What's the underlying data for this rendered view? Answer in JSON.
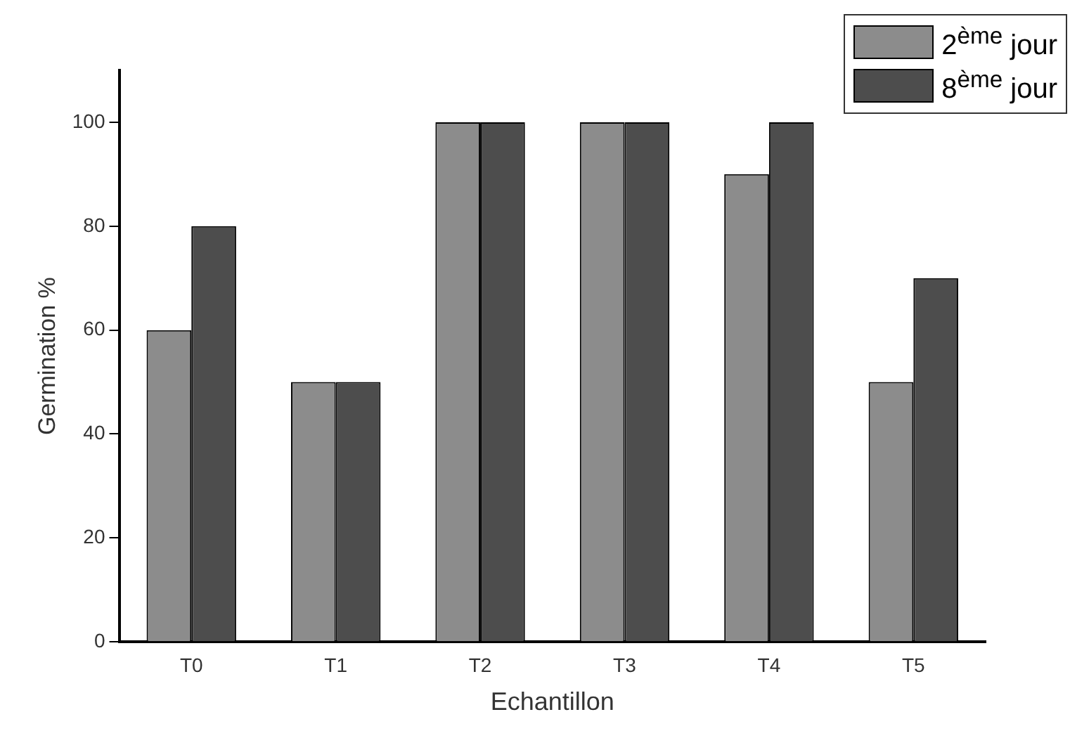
{
  "chart_data": {
    "type": "bar",
    "xlabel": "Echantillon",
    "ylabel": "Germination %",
    "categories": [
      "T0",
      "T1",
      "T2",
      "T3",
      "T4",
      "T5"
    ],
    "series": [
      {
        "name": "2$^{ème}$ jour",
        "color": "#8c8c8c",
        "values": [
          60,
          50,
          100,
          100,
          90,
          50
        ]
      },
      {
        "name": "8$^{ème}$ jour",
        "color": "#4d4d4d",
        "values": [
          80,
          50,
          100,
          100,
          100,
          70
        ]
      }
    ],
    "ylim": [
      0,
      110
    ],
    "yticks": [
      0,
      20,
      40,
      60,
      80,
      100
    ],
    "grid": false,
    "legend": "top right"
  }
}
